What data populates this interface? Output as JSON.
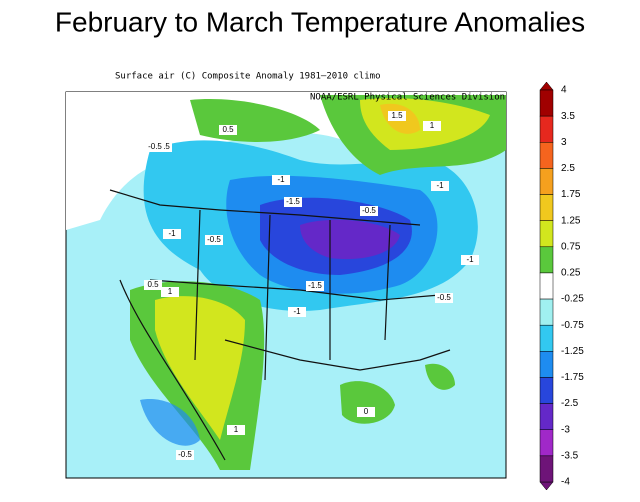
{
  "header": {
    "title": "February to March Temperature Anomalies"
  },
  "map": {
    "subtitle": "Surface air (C) Composite Anomaly 1981–2010 climo",
    "credit": "NOAA/ESRL Physical Sciences Division",
    "contour_labels": [
      "0.5",
      "1.5",
      "1",
      "-0.5",
      "-1",
      "-1.5",
      "-1",
      "-0.5",
      "-1",
      "-0.5",
      "-1.5",
      "-1",
      "-0.5",
      "0.5",
      "1",
      "-0.5",
      "1",
      "-0.5",
      "-1",
      "0"
    ]
  },
  "colorbar": {
    "labels": [
      "4",
      "3.5",
      "3",
      "2.5",
      "1.75",
      "1.25",
      "0.75",
      "0.25",
      "-0.25",
      "-0.75",
      "-1.25",
      "-1.75",
      "-2.5",
      "-3",
      "-3.5",
      "-4"
    ],
    "colors": [
      "#a00000",
      "#e6281e",
      "#f5641e",
      "#f5a01e",
      "#f0c81e",
      "#d2e61e",
      "#5ac83c",
      "#ffffff",
      "#a0f0f0",
      "#32c8f0",
      "#1e8cf0",
      "#2846dc",
      "#6428c8",
      "#a028c8",
      "#6e1478"
    ]
  }
}
